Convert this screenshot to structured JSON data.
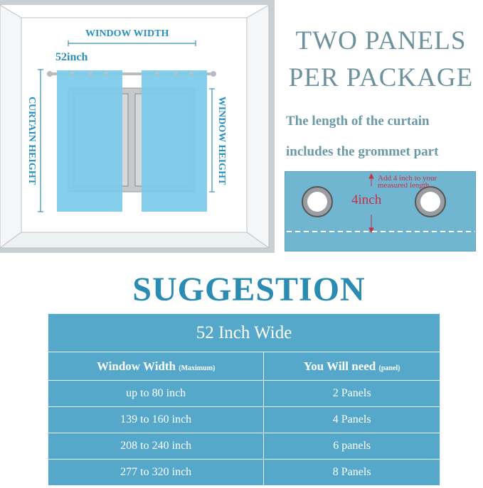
{
  "room_diagram": {
    "window_width_label": "WINDOW WIDTH",
    "panel_width_label": "52inch",
    "curtain_height_label": "CURTAIN HEIGHT",
    "window_height_label": "WINDOW HEIGHT",
    "curtain_color": "#7ccbea"
  },
  "headline": {
    "line1": "TWO PANELS",
    "line2": "PER PACKAGE"
  },
  "note": {
    "line1": "The length of the curtain",
    "line2": "includes the grommet  part"
  },
  "grommet_detail": {
    "note_line1": "Add 4 inch to your",
    "note_line2": "measured length.",
    "measure": "4inch"
  },
  "suggestion": {
    "title": "SUGGESTION",
    "table_title": "52 Inch Wide",
    "headers": [
      {
        "main": "Window Width",
        "sub": "(Maximum)"
      },
      {
        "main": "You Will need",
        "sub": "(panel)"
      }
    ],
    "rows": [
      [
        "up to 80 inch",
        "2 Panels"
      ],
      [
        "139 to 160 inch",
        "4 Panels"
      ],
      [
        "208 to 240 inch",
        "6 panels"
      ],
      [
        "277 to 320 inch",
        "8 Panels"
      ]
    ]
  }
}
